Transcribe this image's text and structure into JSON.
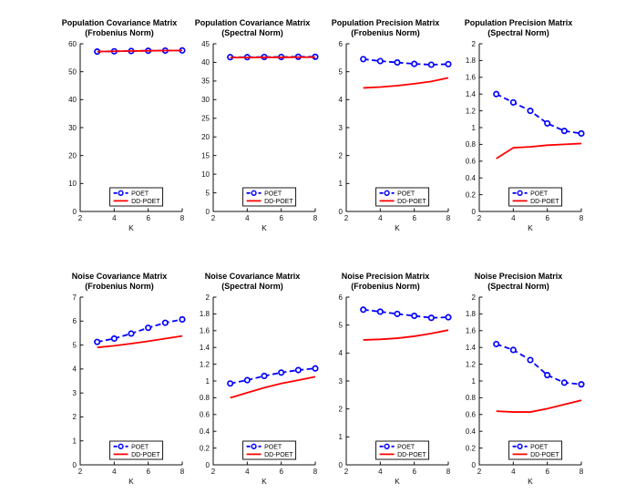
{
  "figure": {
    "background": "#ffffff",
    "axis_color": "#111111",
    "legend": {
      "entries": [
        {
          "label": "POET",
          "color": "#0000ff",
          "line": "dashed",
          "marker": "circle"
        },
        {
          "label": "DD-POET",
          "color": "#ff0000",
          "line": "solid",
          "marker": "none"
        }
      ],
      "position": "south-inside"
    }
  },
  "chart_data": [
    {
      "type": "line",
      "title": "Population Covariance Matrix",
      "subtitle": "(Frobenius Norm)",
      "xlabel": "K",
      "ylabel": "",
      "x": [
        3,
        4,
        5,
        6,
        7,
        8
      ],
      "xlim": [
        2,
        8
      ],
      "xticks": [
        2,
        4,
        6,
        8
      ],
      "ylim": [
        0,
        60
      ],
      "yticks": [
        0,
        10,
        20,
        30,
        40,
        50,
        60
      ],
      "grid": false,
      "series": [
        {
          "name": "POET",
          "values": [
            57.2,
            57.3,
            57.4,
            57.5,
            57.55,
            57.6
          ]
        },
        {
          "name": "DD-POET",
          "values": [
            57.2,
            57.3,
            57.4,
            57.5,
            57.55,
            57.6
          ]
        }
      ]
    },
    {
      "type": "line",
      "title": "Population Covariance Matrix",
      "subtitle": "(Spectral Norm)",
      "xlabel": "K",
      "ylabel": "",
      "x": [
        3,
        4,
        5,
        6,
        7,
        8
      ],
      "xlim": [
        2,
        8
      ],
      "xticks": [
        2,
        4,
        6,
        8
      ],
      "ylim": [
        0,
        45
      ],
      "yticks": [
        0,
        5,
        10,
        15,
        20,
        25,
        30,
        35,
        40,
        45
      ],
      "grid": false,
      "series": [
        {
          "name": "POET",
          "values": [
            41.4,
            41.4,
            41.45,
            41.45,
            41.5,
            41.5
          ]
        },
        {
          "name": "DD-POET",
          "values": [
            41.3,
            41.3,
            41.35,
            41.35,
            41.4,
            41.4
          ]
        }
      ]
    },
    {
      "type": "line",
      "title": "Population Precision Matrix",
      "subtitle": "(Frobenius Norm)",
      "xlabel": "K",
      "ylabel": "",
      "x": [
        3,
        4,
        5,
        6,
        7,
        8
      ],
      "xlim": [
        2,
        8
      ],
      "xticks": [
        2,
        4,
        6,
        8
      ],
      "ylim": [
        0,
        6
      ],
      "yticks": [
        0,
        1,
        2,
        3,
        4,
        5,
        6
      ],
      "grid": false,
      "series": [
        {
          "name": "POET",
          "values": [
            5.45,
            5.38,
            5.33,
            5.28,
            5.25,
            5.27
          ]
        },
        {
          "name": "DD-POET",
          "values": [
            4.42,
            4.45,
            4.5,
            4.57,
            4.65,
            4.78
          ]
        }
      ]
    },
    {
      "type": "line",
      "title": "Population Precision Matrix",
      "subtitle": "(Spectral Norm)",
      "xlabel": "K",
      "ylabel": "",
      "x": [
        3,
        4,
        5,
        6,
        7,
        8
      ],
      "xlim": [
        2,
        8
      ],
      "xticks": [
        2,
        4,
        6,
        8
      ],
      "ylim": [
        0,
        2
      ],
      "yticks": [
        0,
        0.2,
        0.4,
        0.6,
        0.8,
        1,
        1.2,
        1.4,
        1.6,
        1.8,
        2
      ],
      "grid": false,
      "series": [
        {
          "name": "POET",
          "values": [
            1.4,
            1.3,
            1.2,
            1.05,
            0.96,
            0.93
          ]
        },
        {
          "name": "DD-POET",
          "values": [
            0.63,
            0.76,
            0.77,
            0.79,
            0.8,
            0.81
          ]
        }
      ]
    },
    {
      "type": "line",
      "title": "Noise Covariance Matrix",
      "subtitle": "(Frobenius Norm)",
      "xlabel": "K",
      "ylabel": "",
      "x": [
        3,
        4,
        5,
        6,
        7,
        8
      ],
      "xlim": [
        2,
        8
      ],
      "xticks": [
        2,
        4,
        6,
        8
      ],
      "ylim": [
        0,
        7
      ],
      "yticks": [
        0,
        1,
        2,
        3,
        4,
        5,
        6,
        7
      ],
      "grid": false,
      "series": [
        {
          "name": "POET",
          "values": [
            5.13,
            5.27,
            5.48,
            5.72,
            5.93,
            6.07
          ]
        },
        {
          "name": "DD-POET",
          "values": [
            4.9,
            4.97,
            5.06,
            5.16,
            5.27,
            5.38
          ]
        }
      ]
    },
    {
      "type": "line",
      "title": "Noise Covariance Matrix",
      "subtitle": "(Spectral Norm)",
      "xlabel": "K",
      "ylabel": "",
      "x": [
        3,
        4,
        5,
        6,
        7,
        8
      ],
      "xlim": [
        2,
        8
      ],
      "xticks": [
        2,
        4,
        6,
        8
      ],
      "ylim": [
        0,
        2
      ],
      "yticks": [
        0,
        0.2,
        0.4,
        0.6,
        0.8,
        1,
        1.2,
        1.4,
        1.6,
        1.8,
        2
      ],
      "grid": false,
      "series": [
        {
          "name": "POET",
          "values": [
            0.97,
            1.01,
            1.06,
            1.1,
            1.13,
            1.15
          ]
        },
        {
          "name": "DD-POET",
          "values": [
            0.8,
            0.86,
            0.92,
            0.97,
            1.01,
            1.05
          ]
        }
      ]
    },
    {
      "type": "line",
      "title": "Noise Precision Matrix",
      "subtitle": "(Frobenius Norm)",
      "xlabel": "K",
      "ylabel": "",
      "x": [
        3,
        4,
        5,
        6,
        7,
        8
      ],
      "xlim": [
        2,
        8
      ],
      "xticks": [
        2,
        4,
        6,
        8
      ],
      "ylim": [
        0,
        6
      ],
      "yticks": [
        0,
        1,
        2,
        3,
        4,
        5,
        6
      ],
      "grid": false,
      "series": [
        {
          "name": "POET",
          "values": [
            5.55,
            5.48,
            5.4,
            5.33,
            5.26,
            5.28
          ]
        },
        {
          "name": "DD-POET",
          "values": [
            4.47,
            4.49,
            4.53,
            4.6,
            4.7,
            4.82
          ]
        }
      ]
    },
    {
      "type": "line",
      "title": "Noise Precision Matrix",
      "subtitle": "(Spectral Norm)",
      "xlabel": "K",
      "ylabel": "",
      "x": [
        3,
        4,
        5,
        6,
        7,
        8
      ],
      "xlim": [
        2,
        8
      ],
      "xticks": [
        2,
        4,
        6,
        8
      ],
      "ylim": [
        0,
        2
      ],
      "yticks": [
        0,
        0.2,
        0.4,
        0.6,
        0.8,
        1,
        1.2,
        1.4,
        1.6,
        1.8,
        2
      ],
      "grid": false,
      "series": [
        {
          "name": "POET",
          "values": [
            1.44,
            1.37,
            1.25,
            1.07,
            0.98,
            0.96
          ]
        },
        {
          "name": "DD-POET",
          "values": [
            0.64,
            0.63,
            0.63,
            0.67,
            0.72,
            0.77
          ]
        }
      ]
    }
  ]
}
